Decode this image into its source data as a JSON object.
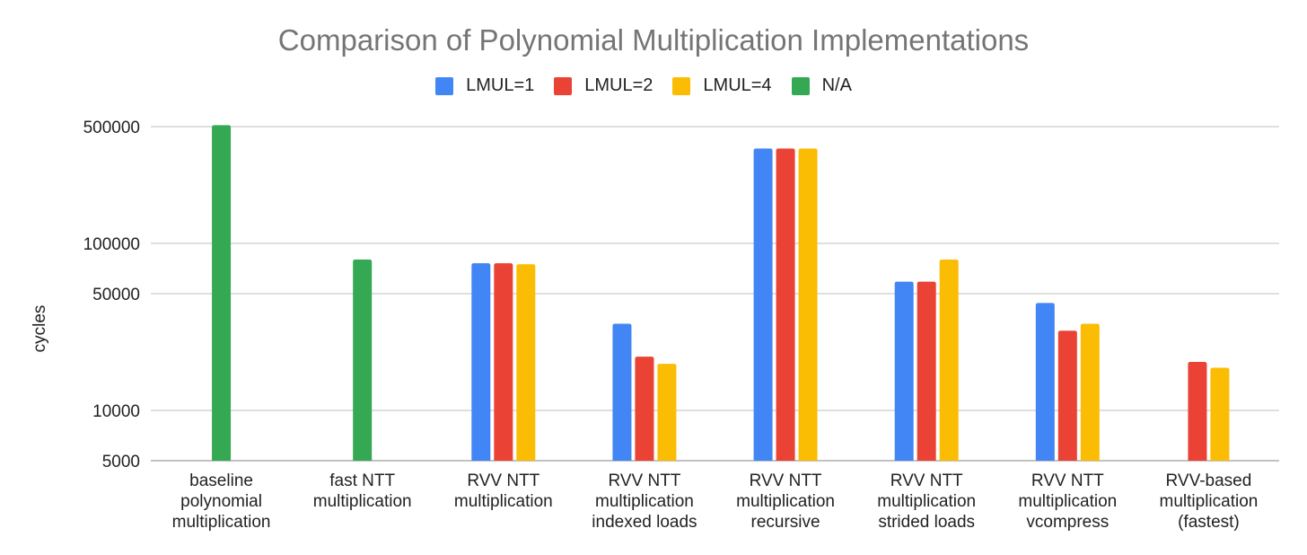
{
  "chart_data": {
    "type": "bar",
    "scale": "log",
    "title": "Comparison of Polynomial Multiplication Implementations",
    "xlabel": "",
    "ylabel": "cycles",
    "ylim": [
      5000,
      600000
    ],
    "yticks": [
      500000,
      100000,
      50000,
      10000,
      5000
    ],
    "ytick_labels": [
      "500000",
      "100000",
      "50000",
      "10000",
      "5000"
    ],
    "grid": true,
    "legend_position": "top-center",
    "categories": [
      [
        "baseline",
        "polynomial",
        "multiplication"
      ],
      [
        "fast NTT",
        "multiplication"
      ],
      [
        "RVV NTT",
        "multiplication"
      ],
      [
        "RVV NTT",
        "multiplication",
        "indexed loads"
      ],
      [
        "RVV NTT",
        "multiplication",
        "recursive"
      ],
      [
        "RVV NTT",
        "multiplication",
        "strided loads"
      ],
      [
        "RVV NTT",
        "multiplication",
        "vcompress"
      ],
      [
        "RVV-based",
        "multiplication",
        "(fastest)"
      ]
    ],
    "series": [
      {
        "name": "LMUL=1",
        "color": "#4285F4",
        "values": [
          null,
          null,
          76000,
          33000,
          370000,
          59000,
          44000,
          null
        ]
      },
      {
        "name": "LMUL=2",
        "color": "#EA4335",
        "values": [
          null,
          null,
          76000,
          21000,
          370000,
          59000,
          30000,
          19500
        ]
      },
      {
        "name": "LMUL=4",
        "color": "#FBBC04",
        "values": [
          null,
          null,
          75000,
          19000,
          370000,
          80000,
          33000,
          18000
        ]
      },
      {
        "name": "N/A",
        "color": "#34A853",
        "values": [
          510000,
          80000,
          null,
          null,
          null,
          null,
          null,
          null
        ]
      }
    ]
  }
}
